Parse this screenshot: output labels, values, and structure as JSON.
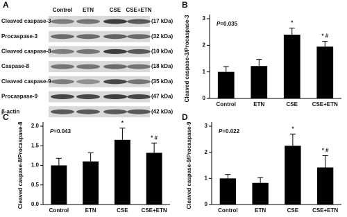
{
  "blot": {
    "panel": "A",
    "lanes": [
      "Control",
      "ETN",
      "CSE",
      "CSE+ETN"
    ],
    "rows": [
      {
        "label": "Cleaved caspase-3",
        "size": "(17 kDa)"
      },
      {
        "label": "Procaspase-3",
        "size": "(32 kDa)"
      },
      {
        "label": "Cleaved caspase-8",
        "size": "(10 kDa)"
      },
      {
        "label": "Caspase-8",
        "size": "(18 kDa)"
      },
      {
        "label": "Cleaved caspase-9",
        "size": "(35 kDa)"
      },
      {
        "label": "Procaspase-9",
        "size": "(47 kDa)"
      },
      {
        "label": "β-actin",
        "size": "(42 kDa)"
      }
    ]
  },
  "chart_data": [
    {
      "type": "bar",
      "panel": "B",
      "p_symbol": "P",
      "p_value": "=0.035",
      "y_label": "Cleaved caspase-3/Procaspase-3",
      "categories": [
        "Control",
        "ETN",
        "CSE",
        "CSE+ETN"
      ],
      "values": [
        1.0,
        1.22,
        2.4,
        1.95
      ],
      "errors": [
        0.2,
        0.25,
        0.25,
        0.2
      ],
      "annotations": [
        null,
        null,
        "*",
        "* #"
      ],
      "color": "#000000",
      "ylim": [
        0,
        3
      ],
      "yticks": [
        0,
        1,
        2,
        3
      ]
    },
    {
      "type": "bar",
      "panel": "C",
      "p_symbol": "P",
      "p_value": "=0.043",
      "y_label": "Cleaved caspase-8/Procaspase-8",
      "categories": [
        "Control",
        "ETN",
        "CSE",
        "CSE+ETN"
      ],
      "values": [
        1.0,
        1.1,
        1.65,
        1.32
      ],
      "errors": [
        0.18,
        0.22,
        0.3,
        0.25
      ],
      "annotations": [
        null,
        null,
        "*",
        "* #"
      ],
      "color": "#000000",
      "ylim": [
        0,
        2
      ],
      "yticks": [
        {
          "value": 0,
          "label": "0.0"
        },
        0.5,
        {
          "value": 1,
          "label": "1.0"
        },
        1.5,
        {
          "value": 2,
          "label": "2.0"
        }
      ]
    },
    {
      "type": "bar",
      "panel": "D",
      "p_symbol": "P",
      "p_value": "=0.022",
      "y_label": "Cleaved caspase-9/Procaspase-9",
      "categories": [
        "Control",
        "ETN",
        "CSE",
        "CSE+ETN"
      ],
      "values": [
        1.0,
        0.83,
        2.25,
        1.42
      ],
      "errors": [
        0.15,
        0.2,
        0.45,
        0.45
      ],
      "annotations": [
        null,
        null,
        "*",
        "* #"
      ],
      "color": "#000000",
      "ylim": [
        0,
        3
      ],
      "yticks": [
        0,
        1,
        2,
        3
      ]
    }
  ]
}
